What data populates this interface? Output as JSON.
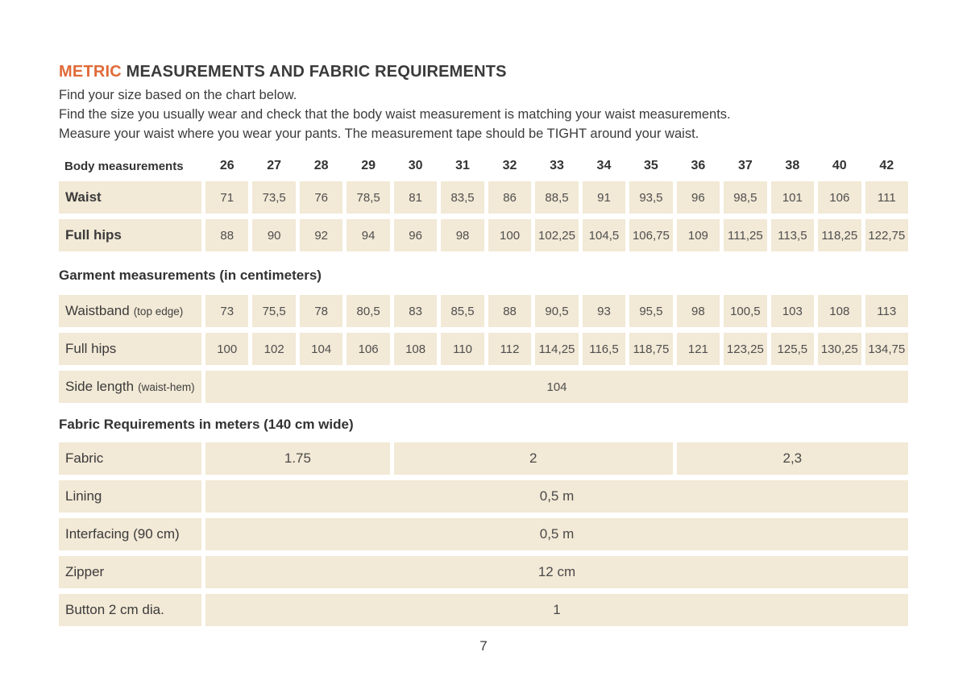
{
  "colors": {
    "accent": "#e06a38",
    "cell_bg": "#f2e9d6",
    "text": "#3b3b3b"
  },
  "page": {
    "title_accent": "METRIC",
    "title_rest": " MEASUREMENTS AND FABRIC REQUIREMENTS",
    "intro_lines": [
      "Find your size based on the chart below.",
      "Find the size you usually wear and check that the body waist measurement is matching your waist measurements.",
      "Measure your waist where you wear your pants. The measurement tape should be TIGHT around your waist."
    ],
    "page_number": "7"
  },
  "body_table": {
    "header_label": "Body measurements",
    "sizes": [
      "26",
      "27",
      "28",
      "29",
      "30",
      "31",
      "32",
      "33",
      "34",
      "35",
      "36",
      "37",
      "38",
      "40",
      "42"
    ],
    "rows": [
      {
        "label": "Waist",
        "values": [
          "71",
          "73,5",
          "76",
          "78,5",
          "81",
          "83,5",
          "86",
          "88,5",
          "91",
          "93,5",
          "96",
          "98,5",
          "101",
          "106",
          "111"
        ]
      },
      {
        "label": "Full hips",
        "values": [
          "88",
          "90",
          "92",
          "94",
          "96",
          "98",
          "100",
          "102,25",
          "104,5",
          "106,75",
          "109",
          "111,25",
          "113,5",
          "118,25",
          "122,75"
        ]
      }
    ]
  },
  "garment_table": {
    "heading": "Garment measurements (in centimeters)",
    "rows": [
      {
        "label": "Waistband",
        "note": "(top edge)",
        "values": [
          "73",
          "75,5",
          "78",
          "80,5",
          "83",
          "85,5",
          "88",
          "90,5",
          "93",
          "95,5",
          "98",
          "100,5",
          "103",
          "108",
          "113"
        ]
      },
      {
        "label": "Full hips",
        "note": "",
        "values": [
          "100",
          "102",
          "104",
          "106",
          "108",
          "110",
          "112",
          "114,25",
          "116,5",
          "118,75",
          "121",
          "123,25",
          "125,5",
          "130,25",
          "134,75"
        ]
      }
    ],
    "span_row": {
      "label": "Side length",
      "note": "(waist-hem)",
      "value": "104"
    }
  },
  "fabric_table": {
    "heading": "Fabric Requirements in meters (140 cm wide)",
    "fabric_row": {
      "label": "Fabric",
      "cells": [
        {
          "value": "1.75",
          "span": 4
        },
        {
          "value": "2",
          "span": 6
        },
        {
          "value": "2,3",
          "span": 5
        }
      ]
    },
    "rows": [
      {
        "label": "Lining",
        "value": "0,5 m"
      },
      {
        "label": "Interfacing (90 cm)",
        "value": "0,5 m"
      },
      {
        "label": "Zipper",
        "value": "12 cm"
      },
      {
        "label": "Button 2 cm dia.",
        "value": "1"
      }
    ]
  }
}
